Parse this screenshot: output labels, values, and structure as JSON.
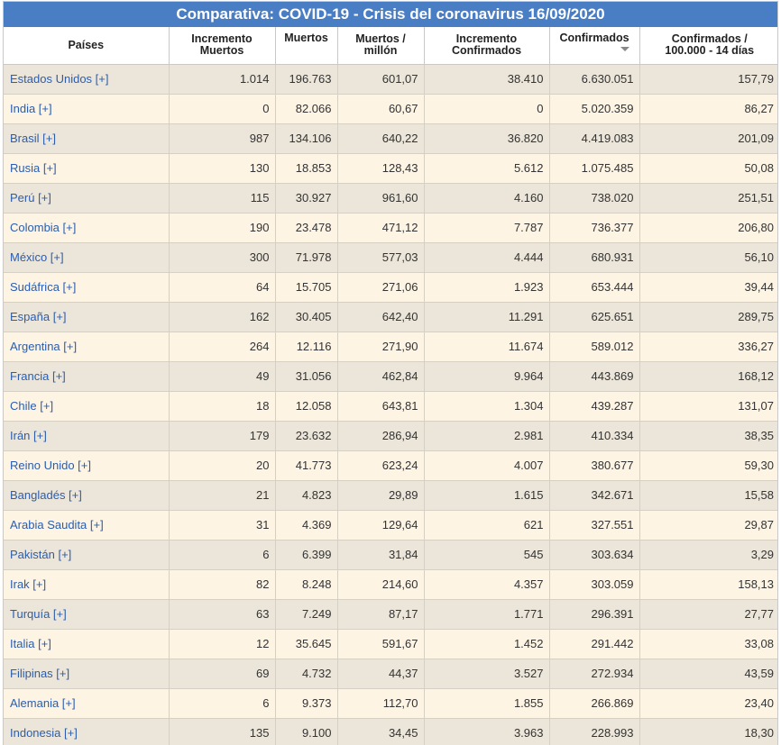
{
  "title": "Comparativa: COVID-19 - Crisis del coronavirus 16/09/2020",
  "columns": {
    "pais": "Países",
    "inc_muertos_1": "Incremento",
    "inc_muertos_2": "Muertos",
    "muertos": "Muertos",
    "muertos_millon_1": "Muertos /",
    "muertos_millon_2": "millón",
    "inc_conf_1": "Incremento",
    "inc_conf_2": "Confirmados",
    "confirmados": "Confirmados",
    "conf_100k_1": "Confirmados /",
    "conf_100k_2": "100.000 - 14 días"
  },
  "rows": [
    {
      "pais": "Estados Unidos [+]",
      "inc_muertos": "1.014",
      "muertos": "196.763",
      "muertos_millon": "601,07",
      "inc_conf": "38.410",
      "confirmados": "6.630.051",
      "conf_100k": "157,79"
    },
    {
      "pais": "India [+]",
      "inc_muertos": "0",
      "muertos": "82.066",
      "muertos_millon": "60,67",
      "inc_conf": "0",
      "confirmados": "5.020.359",
      "conf_100k": "86,27"
    },
    {
      "pais": "Brasil [+]",
      "inc_muertos": "987",
      "muertos": "134.106",
      "muertos_millon": "640,22",
      "inc_conf": "36.820",
      "confirmados": "4.419.083",
      "conf_100k": "201,09"
    },
    {
      "pais": "Rusia [+]",
      "inc_muertos": "130",
      "muertos": "18.853",
      "muertos_millon": "128,43",
      "inc_conf": "5.612",
      "confirmados": "1.075.485",
      "conf_100k": "50,08"
    },
    {
      "pais": "Perú [+]",
      "inc_muertos": "115",
      "muertos": "30.927",
      "muertos_millon": "961,60",
      "inc_conf": "4.160",
      "confirmados": "738.020",
      "conf_100k": "251,51"
    },
    {
      "pais": "Colombia [+]",
      "inc_muertos": "190",
      "muertos": "23.478",
      "muertos_millon": "471,12",
      "inc_conf": "7.787",
      "confirmados": "736.377",
      "conf_100k": "206,80"
    },
    {
      "pais": "México [+]",
      "inc_muertos": "300",
      "muertos": "71.978",
      "muertos_millon": "577,03",
      "inc_conf": "4.444",
      "confirmados": "680.931",
      "conf_100k": "56,10"
    },
    {
      "pais": "Sudáfrica [+]",
      "inc_muertos": "64",
      "muertos": "15.705",
      "muertos_millon": "271,06",
      "inc_conf": "1.923",
      "confirmados": "653.444",
      "conf_100k": "39,44"
    },
    {
      "pais": "España [+]",
      "inc_muertos": "162",
      "muertos": "30.405",
      "muertos_millon": "642,40",
      "inc_conf": "11.291",
      "confirmados": "625.651",
      "conf_100k": "289,75"
    },
    {
      "pais": "Argentina [+]",
      "inc_muertos": "264",
      "muertos": "12.116",
      "muertos_millon": "271,90",
      "inc_conf": "11.674",
      "confirmados": "589.012",
      "conf_100k": "336,27"
    },
    {
      "pais": "Francia [+]",
      "inc_muertos": "49",
      "muertos": "31.056",
      "muertos_millon": "462,84",
      "inc_conf": "9.964",
      "confirmados": "443.869",
      "conf_100k": "168,12"
    },
    {
      "pais": "Chile [+]",
      "inc_muertos": "18",
      "muertos": "12.058",
      "muertos_millon": "643,81",
      "inc_conf": "1.304",
      "confirmados": "439.287",
      "conf_100k": "131,07"
    },
    {
      "pais": "Irán [+]",
      "inc_muertos": "179",
      "muertos": "23.632",
      "muertos_millon": "286,94",
      "inc_conf": "2.981",
      "confirmados": "410.334",
      "conf_100k": "38,35"
    },
    {
      "pais": "Reino Unido [+]",
      "inc_muertos": "20",
      "muertos": "41.773",
      "muertos_millon": "623,24",
      "inc_conf": "4.007",
      "confirmados": "380.677",
      "conf_100k": "59,30"
    },
    {
      "pais": "Bangladés [+]",
      "inc_muertos": "21",
      "muertos": "4.823",
      "muertos_millon": "29,89",
      "inc_conf": "1.615",
      "confirmados": "342.671",
      "conf_100k": "15,58"
    },
    {
      "pais": "Arabia Saudita [+]",
      "inc_muertos": "31",
      "muertos": "4.369",
      "muertos_millon": "129,64",
      "inc_conf": "621",
      "confirmados": "327.551",
      "conf_100k": "29,87"
    },
    {
      "pais": "Pakistán [+]",
      "inc_muertos": "6",
      "muertos": "6.399",
      "muertos_millon": "31,84",
      "inc_conf": "545",
      "confirmados": "303.634",
      "conf_100k": "3,29"
    },
    {
      "pais": "Irak [+]",
      "inc_muertos": "82",
      "muertos": "8.248",
      "muertos_millon": "214,60",
      "inc_conf": "4.357",
      "confirmados": "303.059",
      "conf_100k": "158,13"
    },
    {
      "pais": "Turquía [+]",
      "inc_muertos": "63",
      "muertos": "7.249",
      "muertos_millon": "87,17",
      "inc_conf": "1.771",
      "confirmados": "296.391",
      "conf_100k": "27,77"
    },
    {
      "pais": "Italia [+]",
      "inc_muertos": "12",
      "muertos": "35.645",
      "muertos_millon": "591,67",
      "inc_conf": "1.452",
      "confirmados": "291.442",
      "conf_100k": "33,08"
    },
    {
      "pais": "Filipinas [+]",
      "inc_muertos": "69",
      "muertos": "4.732",
      "muertos_millon": "44,37",
      "inc_conf": "3.527",
      "confirmados": "272.934",
      "conf_100k": "43,59"
    },
    {
      "pais": "Alemania [+]",
      "inc_muertos": "6",
      "muertos": "9.373",
      "muertos_millon": "112,70",
      "inc_conf": "1.855",
      "confirmados": "266.869",
      "conf_100k": "23,40"
    },
    {
      "pais": "Indonesia [+]",
      "inc_muertos": "135",
      "muertos": "9.100",
      "muertos_millon": "34,45",
      "inc_conf": "3.963",
      "confirmados": "228.993",
      "conf_100k": "18,30"
    }
  ]
}
